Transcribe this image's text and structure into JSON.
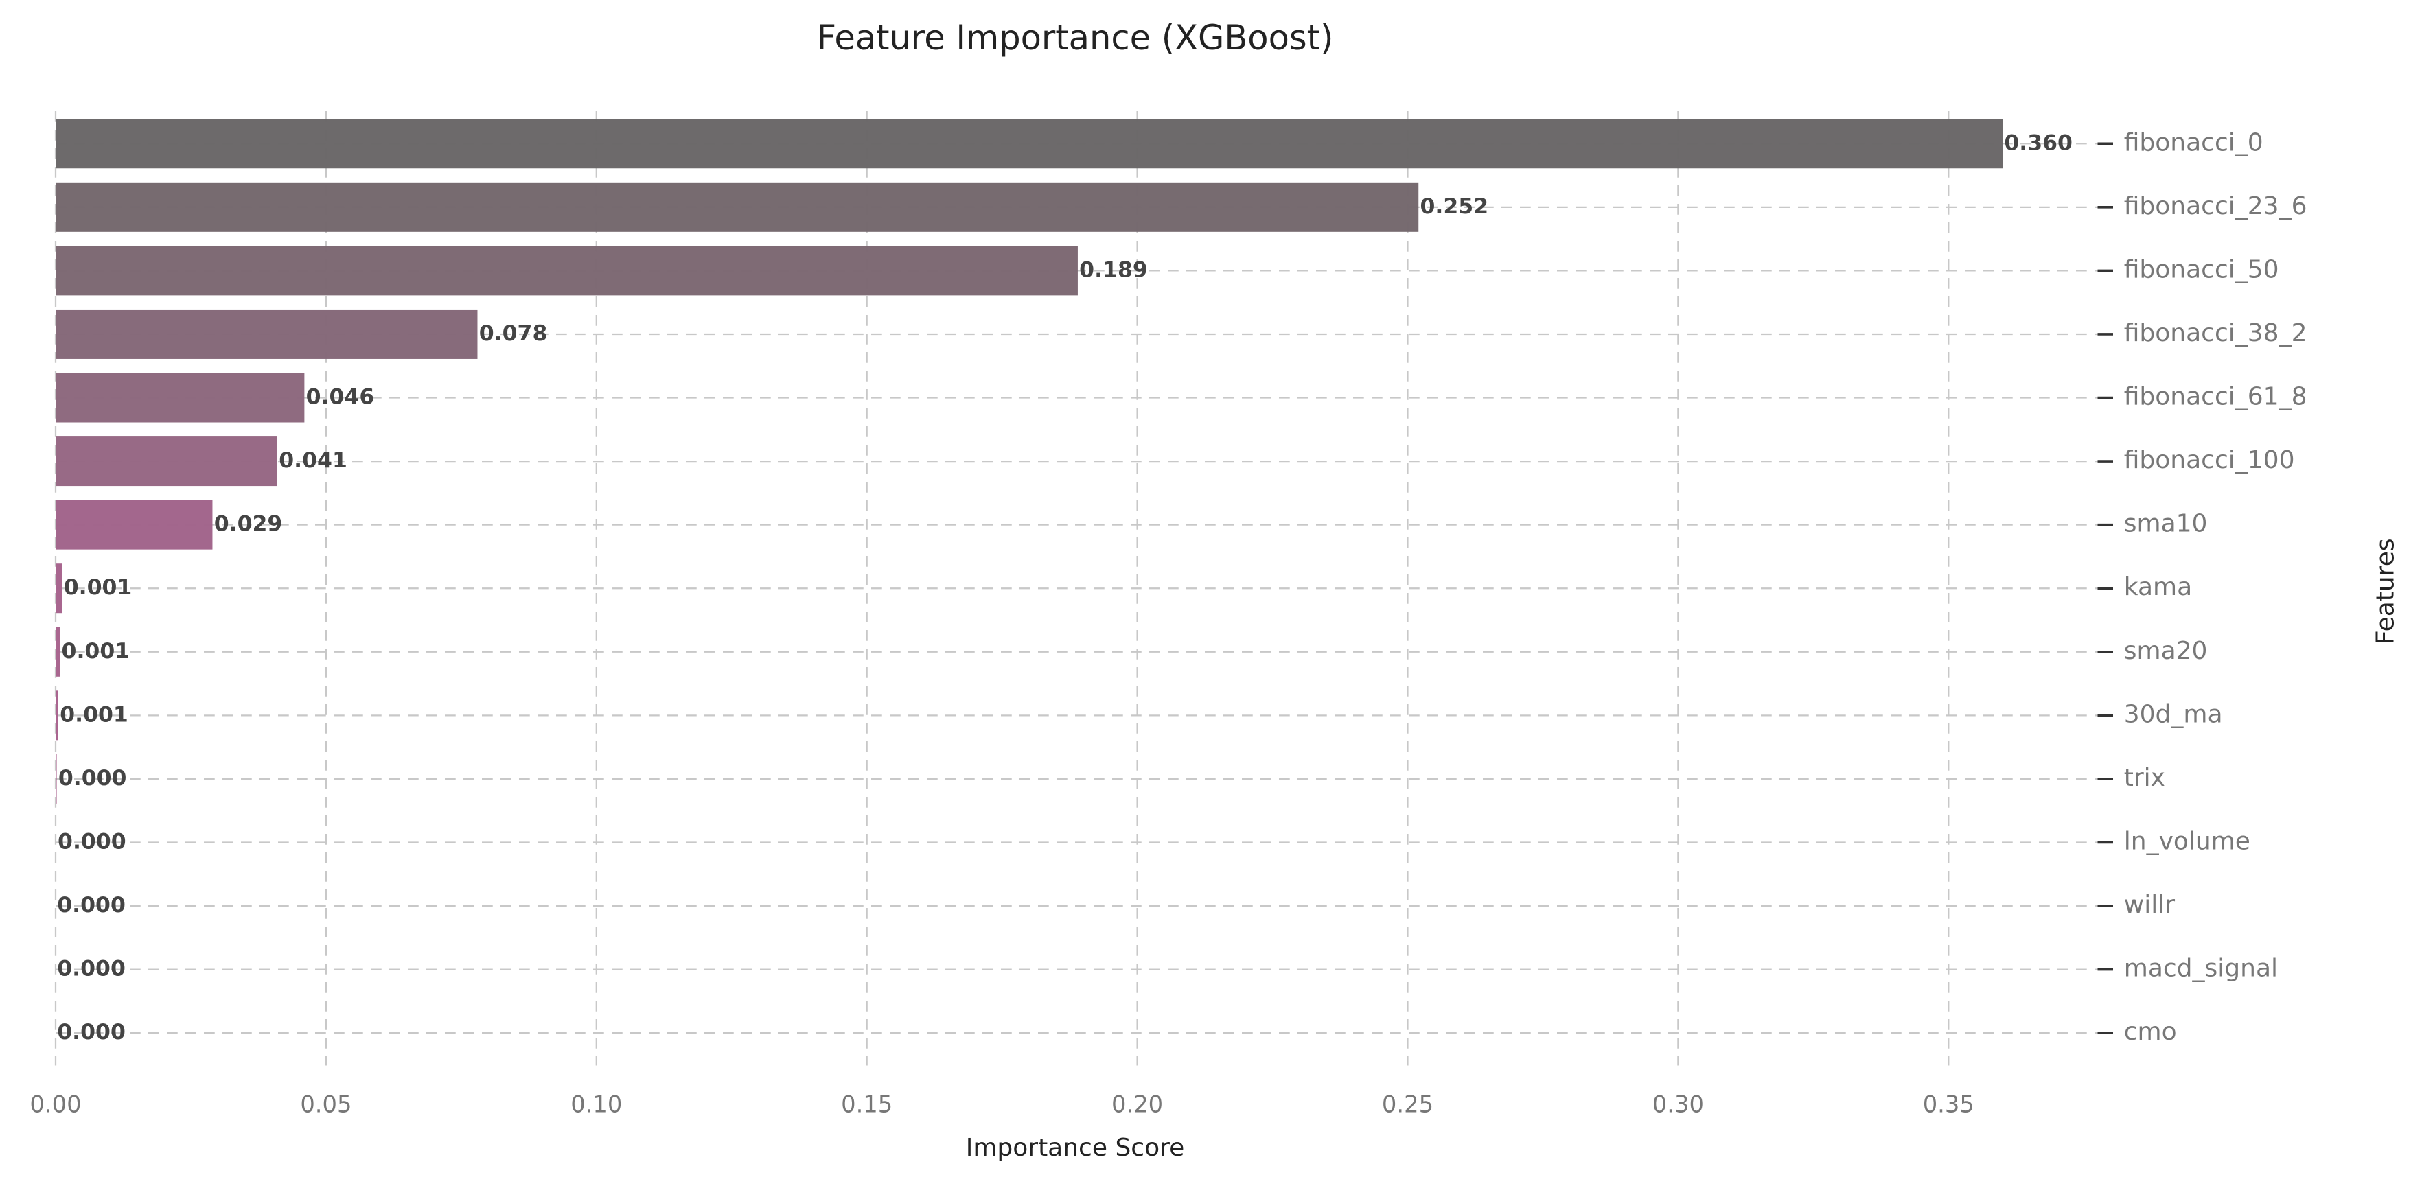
{
  "chart_data": {
    "type": "barh",
    "title": "Feature Importance (XGBoost)",
    "x_label": "Importance Score",
    "y_label": "Features",
    "categories": [
      "fibonacci_0",
      "fibonacci_23_6",
      "fibonacci_50",
      "fibonacci_38_2",
      "fibonacci_61_8",
      "fibonacci_100",
      "sma10",
      "kama",
      "sma20",
      "30d_ma",
      "trix",
      "ln_volume",
      "willr",
      "macd_signal",
      "cmo"
    ],
    "values": [
      0.36,
      0.252,
      0.189,
      0.078,
      0.046,
      0.041,
      0.029,
      0.0012,
      0.0008,
      0.0005,
      0.0002,
      0.0001,
      0,
      0,
      0
    ],
    "value_labels": [
      "0.360",
      "0.252",
      "0.189",
      "0.078",
      "0.046",
      "0.041",
      "0.029",
      "0.001",
      "0.001",
      "0.001",
      "0.000",
      "0.000",
      "0.000",
      "0.000",
      "0.000"
    ],
    "colors": [
      "#686566",
      "#73666b",
      "#7b6671",
      "#836677",
      "#8b667c",
      "#956582",
      "#a06289",
      "#a5618b",
      "#a6618b",
      "#a7608c",
      "#a8608c",
      "#a9608c",
      "#aa5f8d",
      "#aa5f8d",
      "#ab5f8d"
    ],
    "xlim": [
      0,
      0.381
    ],
    "xticks": [
      {
        "value": 0,
        "label": "0.00"
      },
      {
        "value": 0.05,
        "label": "0.05"
      },
      {
        "value": 0.1,
        "label": "0.10"
      },
      {
        "value": 0.15,
        "label": "0.15"
      },
      {
        "value": 0.2,
        "label": "0.20"
      },
      {
        "value": 0.25,
        "label": "0.25"
      },
      {
        "value": 0.3,
        "label": "0.30"
      },
      {
        "value": 0.35,
        "label": "0.35"
      }
    ],
    "grid": true,
    "y_axis_side": "right"
  }
}
